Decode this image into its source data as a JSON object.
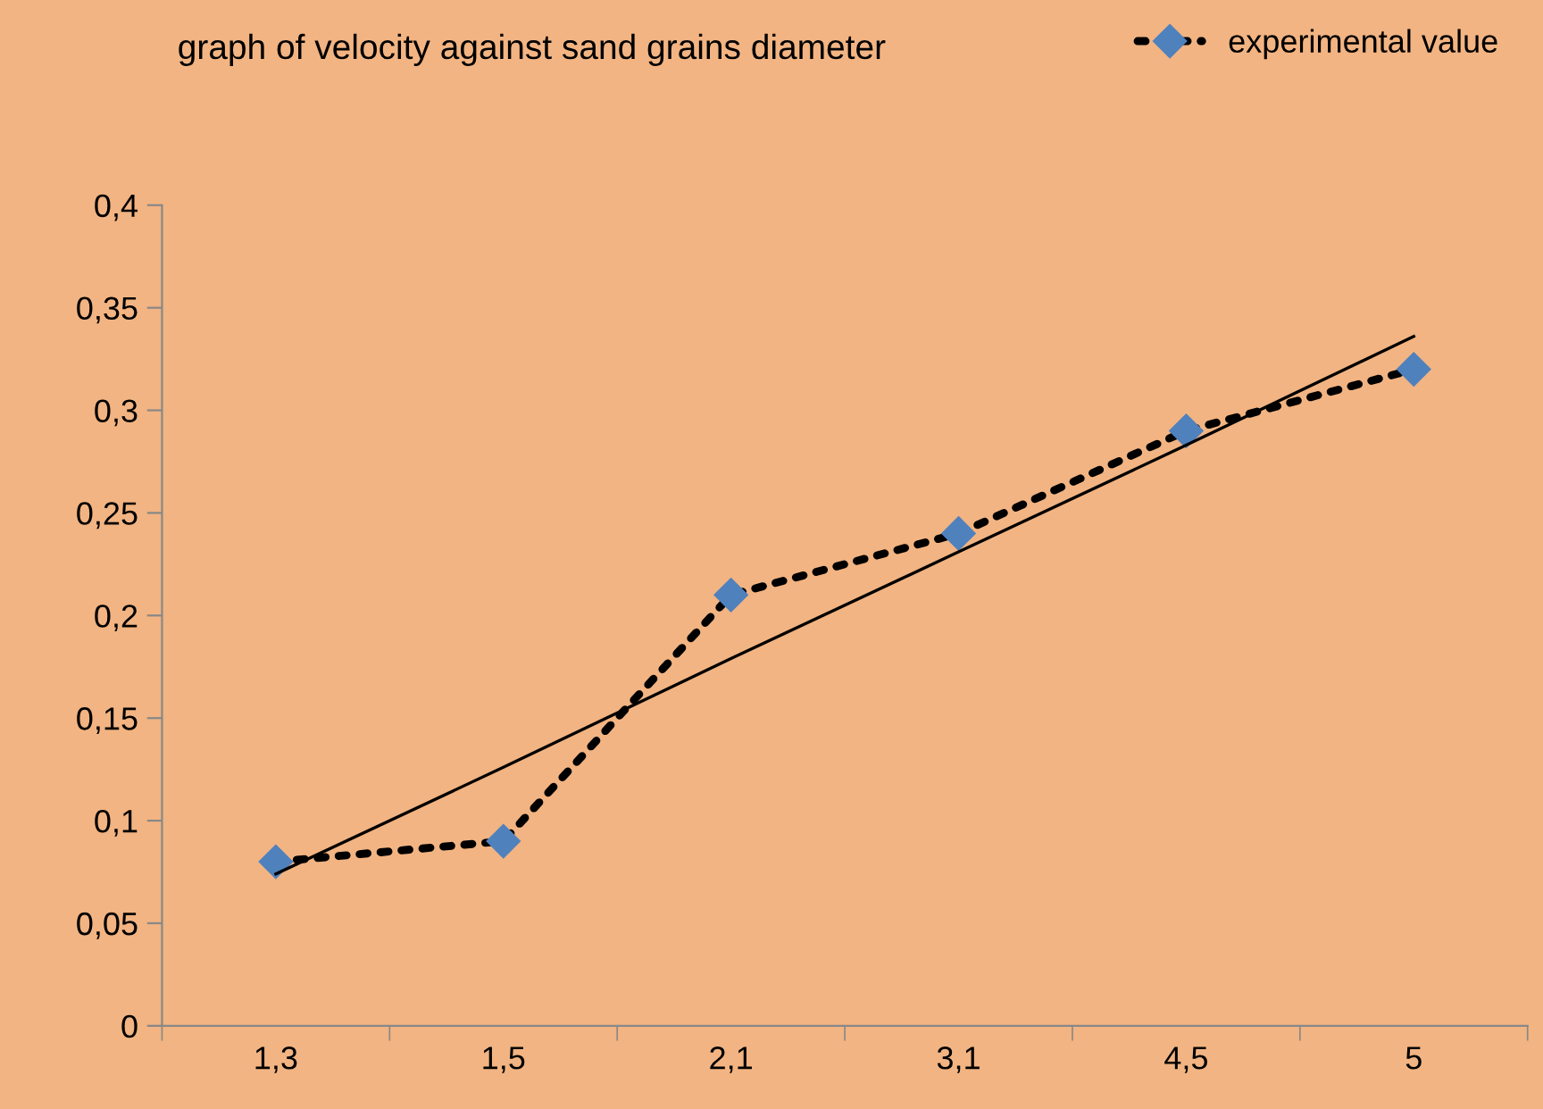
{
  "chart_data": {
    "type": "line",
    "title": "graph of velocity against sand grains diameter",
    "categories": [
      "1,3",
      "1,5",
      "2,1",
      "3,1",
      "4,5",
      "5"
    ],
    "series": [
      {
        "name": "experimental value",
        "color": "#4f81bd",
        "values": [
          0.08,
          0.09,
          0.21,
          0.24,
          0.29,
          0.32
        ],
        "marker": "diamond",
        "line_style": "dotted"
      },
      {
        "color": "#000000",
        "values": [
          0.074,
          0.126,
          0.179,
          0.231,
          0.283,
          0.336
        ],
        "marker": "none",
        "line_style": "solid"
      }
    ],
    "ylim": [
      0,
      0.4
    ],
    "yticks": [
      {
        "value": 0,
        "label": "0"
      },
      {
        "value": 0.05,
        "label": "0,05"
      },
      {
        "value": 0.1,
        "label": "0,1"
      },
      {
        "value": 0.15,
        "label": "0,15"
      },
      {
        "value": 0.2,
        "label": "0,2"
      },
      {
        "value": 0.25,
        "label": "0,25"
      },
      {
        "value": 0.3,
        "label": "0,3"
      },
      {
        "value": 0.35,
        "label": "0,35"
      },
      {
        "value": 0.4,
        "label": "0,4"
      }
    ],
    "grid": false,
    "legend": "top right"
  }
}
